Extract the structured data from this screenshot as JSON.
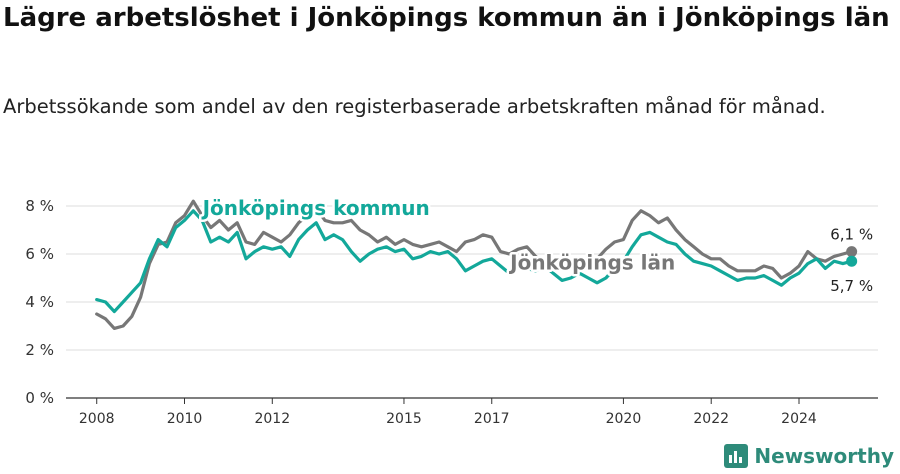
{
  "header": {
    "title": "Lägre arbetslöshet i Jönköpings kommun än i Jönköpings län",
    "subtitle": "Arbetssökande som andel av den registerbaserade arbetskraften månad för månad."
  },
  "brand": {
    "name": "Newsworthy",
    "color": "#2e8b7a"
  },
  "chart_data": {
    "type": "line",
    "title": "Lägre arbetslöshet i Jönköpings kommun än i Jönköpings län",
    "subtitle": "Arbetssökande som andel av den registerbaserade arbetskraften månad för månad.",
    "xlabel": "",
    "ylabel": "",
    "ylim": [
      0,
      8
    ],
    "xlim": [
      2007.3,
      2025.8
    ],
    "yticks": [
      0,
      2,
      4,
      6,
      8
    ],
    "ytick_labels": [
      "0 %",
      "2 %",
      "4 %",
      "6 %",
      "8 %"
    ],
    "xticks": [
      2008,
      2010,
      2012,
      2015,
      2017,
      2020,
      2022,
      2024
    ],
    "grid": true,
    "series": [
      {
        "name": "Jönköpings län",
        "color": "#777777",
        "end_label": "6,1 %",
        "x": [
          2008.0,
          2008.2,
          2008.4,
          2008.6,
          2008.8,
          2009.0,
          2009.2,
          2009.4,
          2009.6,
          2009.8,
          2010.0,
          2010.2,
          2010.4,
          2010.6,
          2010.8,
          2011.0,
          2011.2,
          2011.4,
          2011.6,
          2011.8,
          2012.0,
          2012.2,
          2012.4,
          2012.6,
          2012.8,
          2013.0,
          2013.2,
          2013.4,
          2013.6,
          2013.8,
          2014.0,
          2014.2,
          2014.4,
          2014.6,
          2014.8,
          2015.0,
          2015.2,
          2015.4,
          2015.6,
          2015.8,
          2016.0,
          2016.2,
          2016.4,
          2016.6,
          2016.8,
          2017.0,
          2017.2,
          2017.4,
          2017.6,
          2017.8,
          2018.0,
          2018.2,
          2018.4,
          2018.6,
          2018.8,
          2019.0,
          2019.2,
          2019.4,
          2019.6,
          2019.8,
          2020.0,
          2020.2,
          2020.4,
          2020.6,
          2020.8,
          2021.0,
          2021.2,
          2021.4,
          2021.6,
          2021.8,
          2022.0,
          2022.2,
          2022.4,
          2022.6,
          2022.8,
          2023.0,
          2023.2,
          2023.4,
          2023.6,
          2023.8,
          2024.0,
          2024.2,
          2024.4,
          2024.6,
          2024.8,
          2025.0,
          2025.2
        ],
        "values": [
          3.5,
          3.3,
          2.9,
          3.0,
          3.4,
          4.2,
          5.6,
          6.4,
          6.5,
          7.3,
          7.6,
          8.2,
          7.6,
          7.1,
          7.4,
          7.0,
          7.3,
          6.5,
          6.4,
          6.9,
          6.7,
          6.5,
          6.8,
          7.3,
          7.6,
          7.9,
          7.4,
          7.3,
          7.3,
          7.4,
          7.0,
          6.8,
          6.5,
          6.7,
          6.4,
          6.6,
          6.4,
          6.3,
          6.4,
          6.5,
          6.3,
          6.1,
          6.5,
          6.6,
          6.8,
          6.7,
          6.1,
          6.0,
          6.2,
          6.3,
          5.9,
          5.6,
          5.5,
          5.4,
          5.5,
          5.4,
          5.6,
          5.8,
          6.2,
          6.5,
          6.6,
          7.4,
          7.8,
          7.6,
          7.3,
          7.5,
          7.0,
          6.6,
          6.3,
          6.0,
          5.8,
          5.8,
          5.5,
          5.3,
          5.3,
          5.3,
          5.5,
          5.4,
          5.0,
          5.2,
          5.5,
          6.1,
          5.8,
          5.7,
          5.9,
          6.0,
          6.1
        ]
      },
      {
        "name": "Jönköpings kommun",
        "color": "#13a89a",
        "end_label": "5,7 %",
        "x": [
          2008.0,
          2008.2,
          2008.4,
          2008.6,
          2008.8,
          2009.0,
          2009.2,
          2009.4,
          2009.6,
          2009.8,
          2010.0,
          2010.2,
          2010.4,
          2010.6,
          2010.8,
          2011.0,
          2011.2,
          2011.4,
          2011.6,
          2011.8,
          2012.0,
          2012.2,
          2012.4,
          2012.6,
          2012.8,
          2013.0,
          2013.2,
          2013.4,
          2013.6,
          2013.8,
          2014.0,
          2014.2,
          2014.4,
          2014.6,
          2014.8,
          2015.0,
          2015.2,
          2015.4,
          2015.6,
          2015.8,
          2016.0,
          2016.2,
          2016.4,
          2016.6,
          2016.8,
          2017.0,
          2017.2,
          2017.4,
          2017.6,
          2017.8,
          2018.0,
          2018.2,
          2018.4,
          2018.6,
          2018.8,
          2019.0,
          2019.2,
          2019.4,
          2019.6,
          2019.8,
          2020.0,
          2020.2,
          2020.4,
          2020.6,
          2020.8,
          2021.0,
          2021.2,
          2021.4,
          2021.6,
          2021.8,
          2022.0,
          2022.2,
          2022.4,
          2022.6,
          2022.8,
          2023.0,
          2023.2,
          2023.4,
          2023.6,
          2023.8,
          2024.0,
          2024.2,
          2024.4,
          2024.6,
          2024.8,
          2025.0,
          2025.2
        ],
        "values": [
          4.1,
          4.0,
          3.6,
          4.0,
          4.4,
          4.8,
          5.8,
          6.6,
          6.3,
          7.1,
          7.4,
          7.8,
          7.4,
          6.5,
          6.7,
          6.5,
          6.9,
          5.8,
          6.1,
          6.3,
          6.2,
          6.3,
          5.9,
          6.6,
          7.0,
          7.3,
          6.6,
          6.8,
          6.6,
          6.1,
          5.7,
          6.0,
          6.2,
          6.3,
          6.1,
          6.2,
          5.8,
          5.9,
          6.1,
          6.0,
          6.1,
          5.8,
          5.3,
          5.5,
          5.7,
          5.8,
          5.5,
          5.2,
          5.5,
          5.4,
          5.3,
          5.5,
          5.2,
          4.9,
          5.0,
          5.2,
          5.0,
          4.8,
          5.0,
          5.4,
          5.7,
          6.3,
          6.8,
          6.9,
          6.7,
          6.5,
          6.4,
          6.0,
          5.7,
          5.6,
          5.5,
          5.3,
          5.1,
          4.9,
          5.0,
          5.0,
          5.1,
          4.9,
          4.7,
          5.0,
          5.2,
          5.6,
          5.8,
          5.4,
          5.7,
          5.6,
          5.7
        ]
      }
    ],
    "annotations": [
      {
        "text": "Jönköpings kommun",
        "series": "Jönköpings kommun",
        "at_x": 2013.0
      },
      {
        "text": "Jönköpings län",
        "series": "Jönköpings län",
        "at_x": 2019.3
      }
    ]
  }
}
